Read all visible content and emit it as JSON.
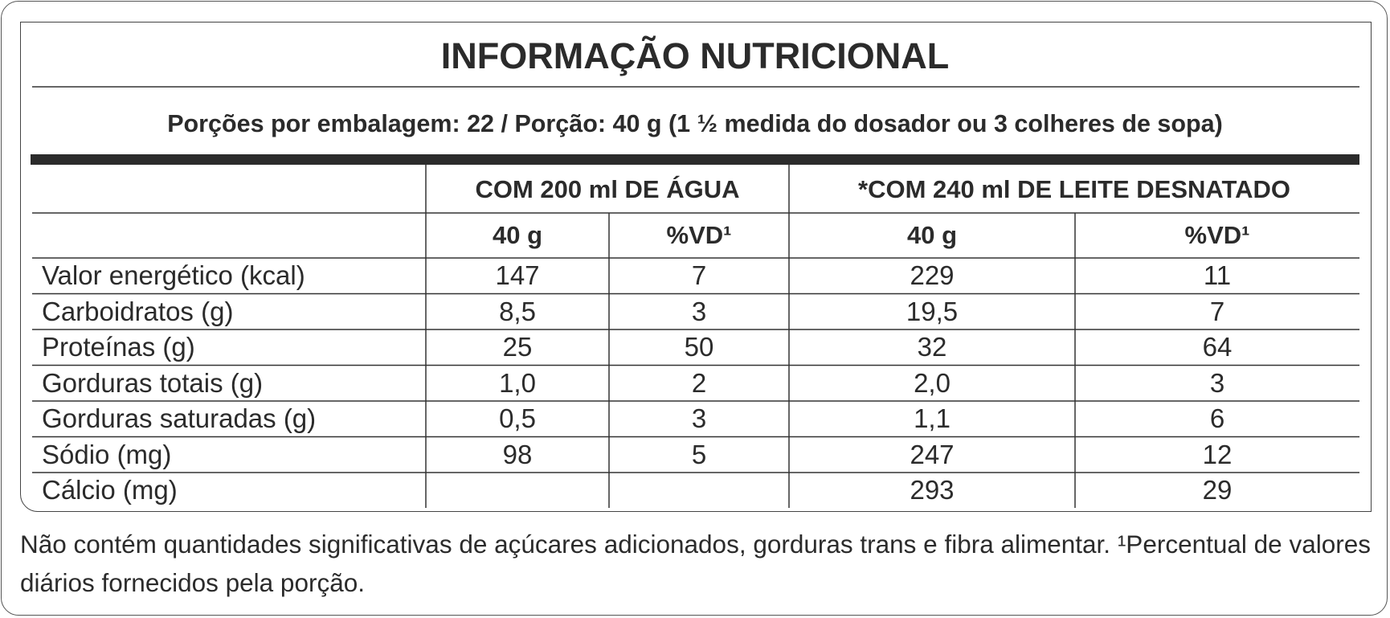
{
  "title": "INFORMAÇÃO NUTRICIONAL",
  "serving": "Porções por embalagem: 22 / Porção: 40 g (1 ½ medida do dosador ou 3 colheres de sopa)",
  "table": {
    "groups": [
      "COM 200 ml DE ÁGUA",
      "*COM 240 ml DE LEITE DESNATADO"
    ],
    "columns": [
      "40 g",
      "%VD¹",
      "40 g",
      "%VD¹"
    ],
    "rows": [
      [
        "Valor energético (kcal)",
        "147",
        "7",
        "229",
        "11"
      ],
      [
        "Carboidratos (g)",
        "8,5",
        "3",
        "19,5",
        "7"
      ],
      [
        "Proteínas (g)",
        "25",
        "50",
        "32",
        "64"
      ],
      [
        "Gorduras totais (g)",
        "1,0",
        "2",
        "2,0",
        "3"
      ],
      [
        "Gorduras saturadas (g)",
        "0,5",
        "3",
        "1,1",
        "6"
      ],
      [
        "Sódio (mg)",
        "98",
        "5",
        "247",
        "12"
      ],
      [
        "Cálcio (mg)",
        null,
        null,
        "293",
        "29"
      ]
    ]
  },
  "footnote": "Não contém quantidades significativas de açúcares adicionados, gorduras trans e fibra alimentar. ¹Percentual de valores diários fornecidos pela porção."
}
